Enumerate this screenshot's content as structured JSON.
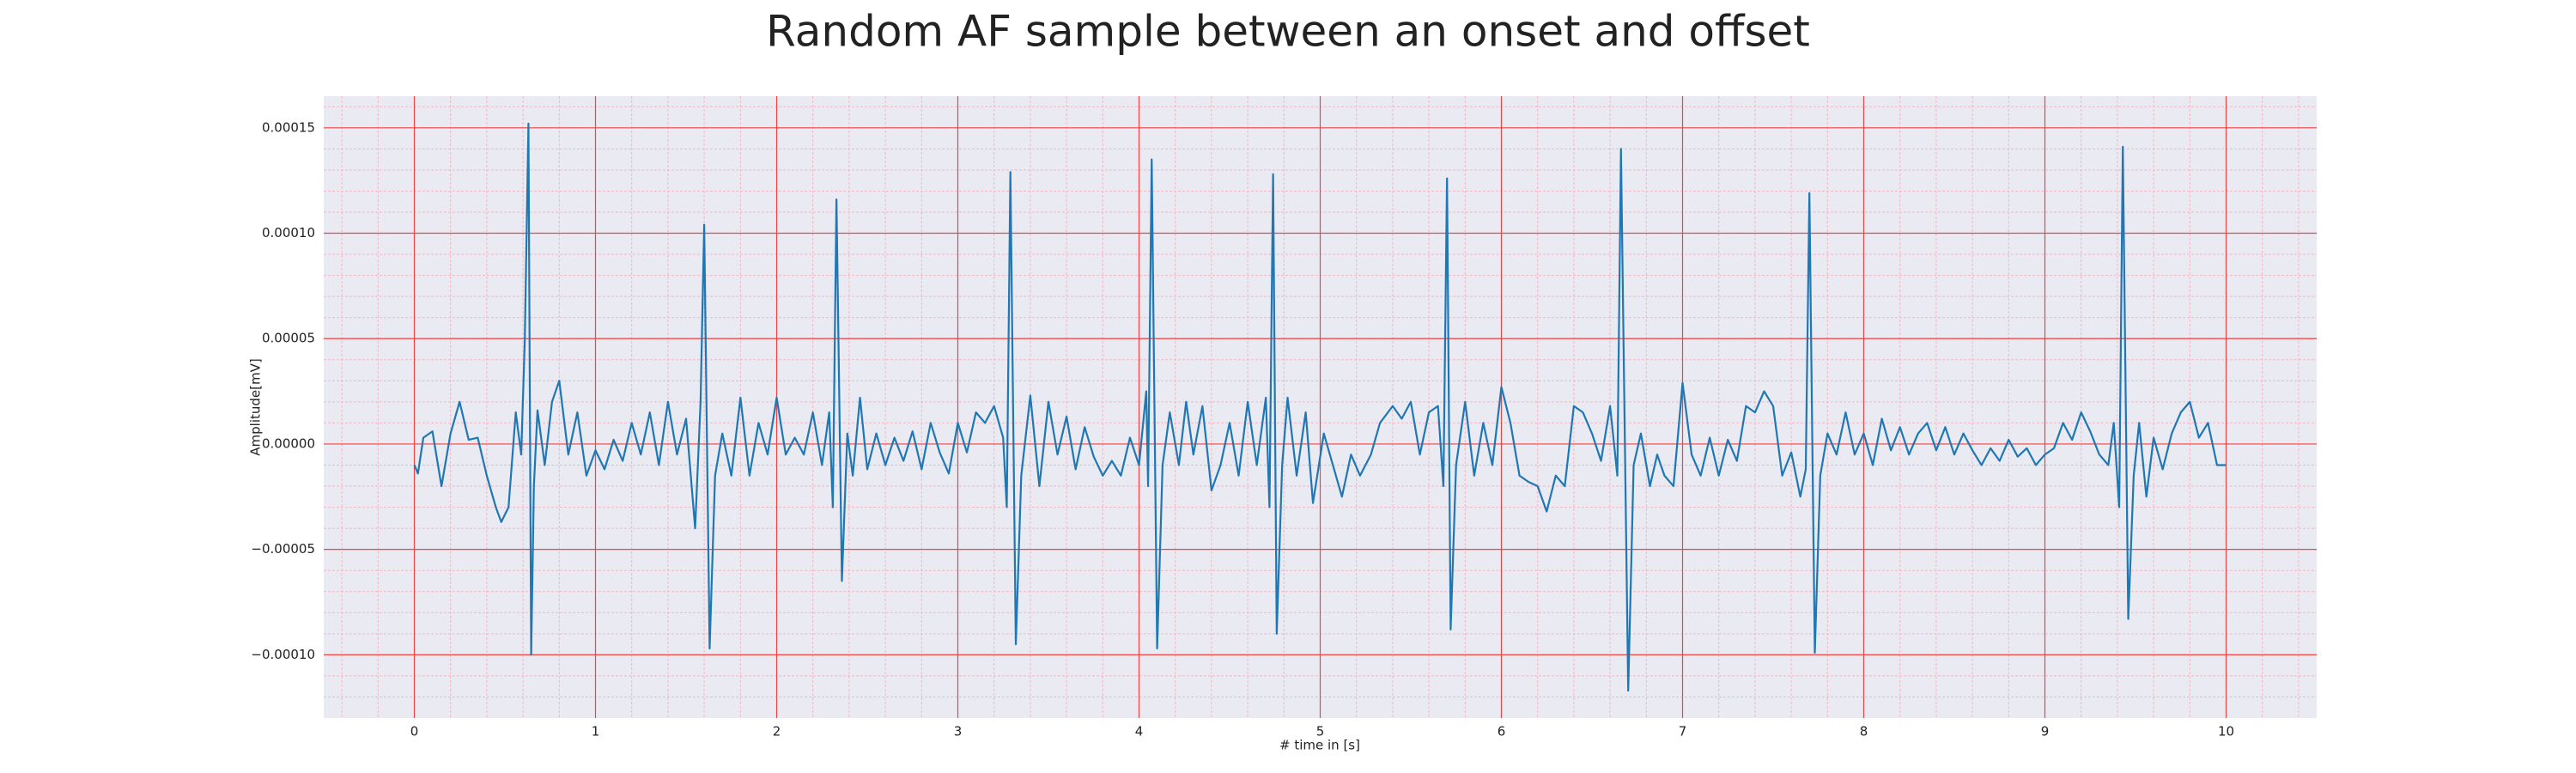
{
  "chart_data": {
    "type": "line",
    "title": "Random AF sample between an onset and offset",
    "xlabel": "# time in [s]",
    "ylabel": "Amplitude[mV]",
    "xlim": [
      -0.5,
      10.5
    ],
    "ylim": [
      -0.00013,
      0.000165
    ],
    "xticks": [
      0,
      1,
      2,
      3,
      4,
      5,
      6,
      7,
      8,
      9,
      10
    ],
    "yticks": [
      {
        "value": -0.0001,
        "label": "−0.00010"
      },
      {
        "value": -5e-05,
        "label": "−0.00005"
      },
      {
        "value": 0,
        "label": "0.00000"
      },
      {
        "value": 5e-05,
        "label": "0.00005"
      },
      {
        "value": 0.0001,
        "label": "0.00010"
      },
      {
        "value": 0.00015,
        "label": "0.00015"
      }
    ],
    "grid": true,
    "minor_grid": true,
    "series": [
      {
        "color": "#1f77b4",
        "x": [
          0.0,
          0.02,
          0.05,
          0.1,
          0.15,
          0.2,
          0.25,
          0.3,
          0.35,
          0.4,
          0.45,
          0.48,
          0.52,
          0.56,
          0.59,
          0.61,
          0.63,
          0.645,
          0.66,
          0.68,
          0.72,
          0.76,
          0.8,
          0.85,
          0.9,
          0.95,
          1.0,
          1.05,
          1.1,
          1.15,
          1.2,
          1.25,
          1.3,
          1.35,
          1.4,
          1.45,
          1.5,
          1.55,
          1.58,
          1.6,
          1.63,
          1.66,
          1.7,
          1.75,
          1.8,
          1.85,
          1.9,
          1.95,
          2.0,
          2.05,
          2.1,
          2.15,
          2.2,
          2.25,
          2.29,
          2.31,
          2.33,
          2.36,
          2.39,
          2.42,
          2.46,
          2.5,
          2.55,
          2.6,
          2.65,
          2.7,
          2.75,
          2.8,
          2.85,
          2.9,
          2.95,
          3.0,
          3.05,
          3.1,
          3.15,
          3.2,
          3.25,
          3.27,
          3.29,
          3.32,
          3.35,
          3.4,
          3.45,
          3.5,
          3.55,
          3.6,
          3.65,
          3.7,
          3.75,
          3.8,
          3.85,
          3.9,
          3.95,
          4.0,
          4.04,
          4.05,
          4.07,
          4.1,
          4.13,
          4.17,
          4.22,
          4.26,
          4.3,
          4.35,
          4.4,
          4.45,
          4.5,
          4.55,
          4.6,
          4.65,
          4.7,
          4.72,
          4.74,
          4.76,
          4.79,
          4.82,
          4.87,
          4.92,
          4.96,
          5.02,
          5.07,
          5.12,
          5.17,
          5.22,
          5.28,
          5.33,
          5.4,
          5.45,
          5.5,
          5.55,
          5.6,
          5.65,
          5.68,
          5.7,
          5.72,
          5.75,
          5.8,
          5.85,
          5.9,
          5.95,
          6.0,
          6.05,
          6.1,
          6.15,
          6.2,
          6.25,
          6.3,
          6.35,
          6.4,
          6.45,
          6.5,
          6.55,
          6.6,
          6.64,
          6.66,
          6.7,
          6.73,
          6.77,
          6.82,
          6.86,
          6.9,
          6.95,
          7.0,
          7.05,
          7.1,
          7.15,
          7.2,
          7.25,
          7.3,
          7.35,
          7.4,
          7.45,
          7.5,
          7.55,
          7.6,
          7.65,
          7.68,
          7.7,
          7.73,
          7.76,
          7.8,
          7.85,
          7.9,
          7.95,
          8.0,
          8.05,
          8.1,
          8.15,
          8.2,
          8.25,
          8.3,
          8.35,
          8.4,
          8.45,
          8.5,
          8.55,
          8.6,
          8.65,
          8.7,
          8.75,
          8.8,
          8.85,
          8.9,
          8.95,
          9.0,
          9.05,
          9.1,
          9.15,
          9.2,
          9.25,
          9.3,
          9.35,
          9.38,
          9.41,
          9.43,
          9.46,
          9.49,
          9.52,
          9.56,
          9.6,
          9.65,
          9.7,
          9.75,
          9.8,
          9.85,
          9.9,
          9.95,
          10.0
        ],
        "values": [
          -1e-05,
          -1.4e-05,
          3e-06,
          6e-06,
          -2e-05,
          5e-06,
          2e-05,
          2e-06,
          3e-06,
          -1.5e-05,
          -3e-05,
          -3.7e-05,
          -3e-05,
          1.5e-05,
          -5e-06,
          5e-05,
          0.000152,
          -0.0001,
          -2e-05,
          1.6e-05,
          -1e-05,
          2e-05,
          3e-05,
          -5e-06,
          1.5e-05,
          -1.5e-05,
          -3e-06,
          -1.2e-05,
          2e-06,
          -8e-06,
          1e-05,
          -5e-06,
          1.5e-05,
          -1e-05,
          2e-05,
          -5e-06,
          1.2e-05,
          -4e-05,
          2e-05,
          0.000104,
          -9.7e-05,
          -1.5e-05,
          5e-06,
          -1.5e-05,
          2.2e-05,
          -1.5e-05,
          1e-05,
          -5e-06,
          2.2e-05,
          -5e-06,
          3e-06,
          -5e-06,
          1.5e-05,
          -1e-05,
          1.5e-05,
          -3e-05,
          0.000116,
          -6.5e-05,
          5e-06,
          -1.5e-05,
          2.2e-05,
          -1.2e-05,
          5e-06,
          -1e-05,
          3e-06,
          -8e-06,
          6e-06,
          -1.2e-05,
          1e-05,
          -4e-06,
          -1.4e-05,
          1e-05,
          -4e-06,
          1.5e-05,
          1e-05,
          1.8e-05,
          3e-06,
          -3e-05,
          0.000129,
          -9.5e-05,
          -1.5e-05,
          2.3e-05,
          -2e-05,
          2e-05,
          -5e-06,
          1.3e-05,
          -1.2e-05,
          8e-06,
          -6e-06,
          -1.5e-05,
          -8e-06,
          -1.5e-05,
          3e-06,
          -1e-05,
          2.5e-05,
          -2e-05,
          0.000135,
          -9.7e-05,
          -1e-05,
          1.5e-05,
          -1e-05,
          2e-05,
          -5e-06,
          1.8e-05,
          -2.2e-05,
          -1e-05,
          1e-05,
          -1.5e-05,
          2e-05,
          -1e-05,
          2.2e-05,
          -3e-05,
          0.000128,
          -9e-05,
          -1e-05,
          2.2e-05,
          -1.5e-05,
          1.5e-05,
          -2.8e-05,
          5e-06,
          -1e-05,
          -2.5e-05,
          -5e-06,
          -1.5e-05,
          -5e-06,
          1e-05,
          1.8e-05,
          1.2e-05,
          2e-05,
          -5e-06,
          1.5e-05,
          1.8e-05,
          -2e-05,
          0.000126,
          -8.8e-05,
          -1e-05,
          2e-05,
          -1.5e-05,
          1e-05,
          -1e-05,
          2.7e-05,
          1e-05,
          -1.5e-05,
          -1.8e-05,
          -2e-05,
          -3.2e-05,
          -1.5e-05,
          -2e-05,
          1.8e-05,
          1.5e-05,
          5e-06,
          -8e-06,
          1.8e-05,
          -1.5e-05,
          0.00014,
          -0.000117,
          -1e-05,
          5e-06,
          -2e-05,
          -5e-06,
          -1.5e-05,
          -2e-05,
          2.9e-05,
          -5e-06,
          -1.5e-05,
          3e-06,
          -1.5e-05,
          2e-06,
          -8e-06,
          1.8e-05,
          1.5e-05,
          2.5e-05,
          1.8e-05,
          -1.5e-05,
          -4e-06,
          -2.5e-05,
          -1.2e-05,
          0.000119,
          -9.9e-05,
          -1.5e-05,
          5e-06,
          -5e-06,
          1.5e-05,
          -5e-06,
          5e-06,
          -1e-05,
          1.2e-05,
          -3e-06,
          8e-06,
          -5e-06,
          5e-06,
          1e-05,
          -3e-06,
          8e-06,
          -5e-06,
          5e-06,
          -3e-06,
          -1e-05,
          -2e-06,
          -8e-06,
          2e-06,
          -6e-06,
          -2e-06,
          -1e-05,
          -5e-06,
          -2e-06,
          1e-05,
          2e-06,
          1.5e-05,
          6e-06,
          -5e-06,
          -1e-05,
          1e-05,
          -3e-05,
          0.000141,
          -8.3e-05,
          -1.5e-05,
          1e-05,
          -2.5e-05,
          3e-06,
          -1.2e-05,
          5e-06,
          1.5e-05,
          2e-05,
          3e-06,
          1e-05,
          -1e-05,
          -1e-05
        ]
      }
    ]
  }
}
